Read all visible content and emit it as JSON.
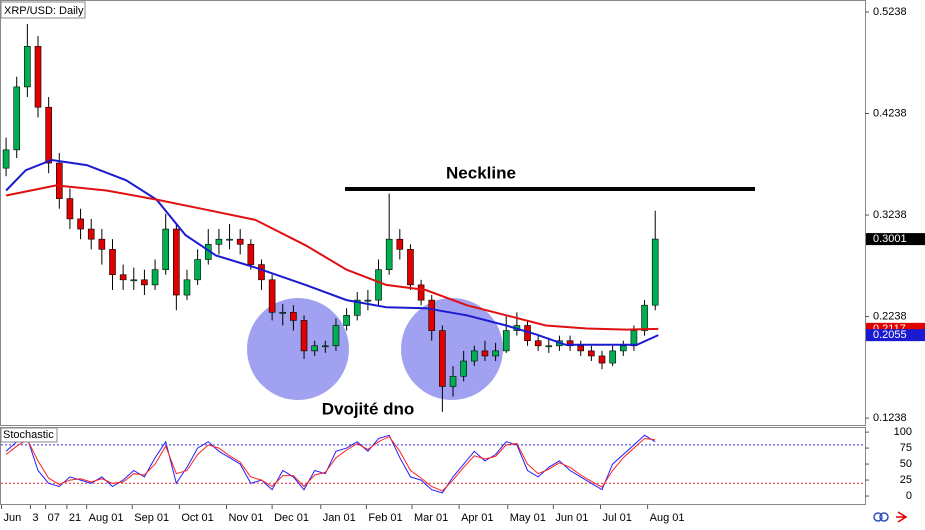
{
  "chart_data": {
    "type": "candlestick",
    "title": "XRP/USD: Daily",
    "up_color": "#00b050",
    "down_color": "#e00000",
    "x": [
      0,
      7,
      14,
      21,
      28,
      35,
      42,
      49,
      56,
      63,
      70,
      77,
      84,
      91,
      98,
      105,
      112,
      119,
      126,
      133,
      140,
      147,
      154,
      161,
      168,
      175,
      182,
      189,
      196,
      203,
      210,
      217,
      224,
      231,
      238,
      245,
      252,
      259,
      266,
      273,
      280,
      287,
      294,
      301,
      308,
      315,
      322,
      329,
      336,
      343,
      350,
      357,
      364,
      371,
      378,
      385,
      392,
      399,
      406,
      413,
      420,
      427
    ],
    "candles": [
      [
        0.37,
        0.4,
        0.362,
        0.388
      ],
      [
        0.388,
        0.46,
        0.38,
        0.45
      ],
      [
        0.45,
        0.512,
        0.44,
        0.49
      ],
      [
        0.49,
        0.5,
        0.42,
        0.43
      ],
      [
        0.43,
        0.44,
        0.365,
        0.375
      ],
      [
        0.375,
        0.385,
        0.33,
        0.34
      ],
      [
        0.34,
        0.35,
        0.31,
        0.32
      ],
      [
        0.32,
        0.33,
        0.3,
        0.31
      ],
      [
        0.31,
        0.32,
        0.29,
        0.3
      ],
      [
        0.3,
        0.31,
        0.275,
        0.29
      ],
      [
        0.29,
        0.3,
        0.25,
        0.265
      ],
      [
        0.265,
        0.275,
        0.25,
        0.26
      ],
      [
        0.26,
        0.272,
        0.25,
        0.26
      ],
      [
        0.26,
        0.27,
        0.245,
        0.255
      ],
      [
        0.255,
        0.28,
        0.25,
        0.27
      ],
      [
        0.27,
        0.325,
        0.265,
        0.31
      ],
      [
        0.31,
        0.315,
        0.23,
        0.245
      ],
      [
        0.245,
        0.27,
        0.24,
        0.26
      ],
      [
        0.26,
        0.29,
        0.255,
        0.28
      ],
      [
        0.28,
        0.31,
        0.275,
        0.295
      ],
      [
        0.295,
        0.31,
        0.285,
        0.3
      ],
      [
        0.3,
        0.315,
        0.29,
        0.3
      ],
      [
        0.3,
        0.31,
        0.285,
        0.295
      ],
      [
        0.295,
        0.3,
        0.27,
        0.275
      ],
      [
        0.275,
        0.28,
        0.25,
        0.26
      ],
      [
        0.26,
        0.265,
        0.22,
        0.228
      ],
      [
        0.228,
        0.236,
        0.215,
        0.228
      ],
      [
        0.228,
        0.235,
        0.21,
        0.22
      ],
      [
        0.22,
        0.225,
        0.182,
        0.19
      ],
      [
        0.19,
        0.2,
        0.185,
        0.195
      ],
      [
        0.195,
        0.2,
        0.188,
        0.195
      ],
      [
        0.195,
        0.222,
        0.19,
        0.215
      ],
      [
        0.215,
        0.232,
        0.21,
        0.225
      ],
      [
        0.225,
        0.248,
        0.22,
        0.24
      ],
      [
        0.24,
        0.25,
        0.23,
        0.24
      ],
      [
        0.24,
        0.28,
        0.235,
        0.27
      ],
      [
        0.27,
        0.345,
        0.265,
        0.3
      ],
      [
        0.3,
        0.31,
        0.28,
        0.29
      ],
      [
        0.29,
        0.295,
        0.25,
        0.255
      ],
      [
        0.255,
        0.26,
        0.235,
        0.24
      ],
      [
        0.24,
        0.245,
        0.2,
        0.21
      ],
      [
        0.21,
        0.215,
        0.13,
        0.155
      ],
      [
        0.155,
        0.175,
        0.145,
        0.165
      ],
      [
        0.165,
        0.19,
        0.16,
        0.18
      ],
      [
        0.18,
        0.195,
        0.175,
        0.19
      ],
      [
        0.19,
        0.2,
        0.18,
        0.185
      ],
      [
        0.185,
        0.198,
        0.18,
        0.19
      ],
      [
        0.19,
        0.225,
        0.188,
        0.21
      ],
      [
        0.21,
        0.228,
        0.205,
        0.215
      ],
      [
        0.215,
        0.22,
        0.195,
        0.2
      ],
      [
        0.2,
        0.205,
        0.19,
        0.195
      ],
      [
        0.195,
        0.203,
        0.188,
        0.195
      ],
      [
        0.195,
        0.205,
        0.19,
        0.2
      ],
      [
        0.2,
        0.205,
        0.19,
        0.195
      ],
      [
        0.195,
        0.2,
        0.185,
        0.19
      ],
      [
        0.19,
        0.195,
        0.18,
        0.185
      ],
      [
        0.185,
        0.19,
        0.172,
        0.178
      ],
      [
        0.178,
        0.195,
        0.175,
        0.19
      ],
      [
        0.19,
        0.2,
        0.185,
        0.195
      ],
      [
        0.195,
        0.215,
        0.19,
        0.21
      ],
      [
        0.21,
        0.24,
        0.205,
        0.235
      ],
      [
        0.235,
        0.328,
        0.23,
        0.3001
      ]
    ],
    "overlays": [
      {
        "color": "#1a1ad0",
        "x": [
          0,
          13,
          30,
          53,
          79,
          99,
          118,
          138,
          164,
          197,
          224,
          250,
          276,
          303,
          329,
          349,
          368,
          395,
          415,
          429
        ],
        "values": [
          0.348,
          0.368,
          0.378,
          0.373,
          0.358,
          0.339,
          0.304,
          0.284,
          0.272,
          0.255,
          0.24,
          0.233,
          0.232,
          0.225,
          0.215,
          0.206,
          0.196,
          0.196,
          0.196,
          0.2055
        ]
      },
      {
        "color": "#e01010",
        "x": [
          0,
          33,
          66,
          99,
          132,
          164,
          197,
          224,
          250,
          276,
          303,
          329,
          355,
          382,
          408,
          429
        ],
        "values": [
          0.343,
          0.353,
          0.348,
          0.339,
          0.329,
          0.319,
          0.294,
          0.27,
          0.255,
          0.25,
          0.235,
          0.225,
          0.215,
          0.212,
          0.211,
          0.2117
        ]
      }
    ],
    "price_markers": [
      {
        "value": 0.2117,
        "color": "#e00000"
      },
      {
        "value": 0.2055,
        "color": "#1a1ad0"
      },
      {
        "value": 0.3001,
        "color": "#000000"
      }
    ],
    "xlim": [
      -4,
      565
    ],
    "xticks": [
      {
        "value": -3,
        "label": "Jun"
      },
      {
        "value": 16,
        "label": "3"
      },
      {
        "value": 26,
        "label": "07"
      },
      {
        "value": 40,
        "label": "21"
      },
      {
        "value": 53,
        "label": "Aug 01"
      },
      {
        "value": 83,
        "label": "Sep 01"
      },
      {
        "value": 114,
        "label": "Oct 01"
      },
      {
        "value": 145,
        "label": "Nov 01"
      },
      {
        "value": 175,
        "label": "Dec 01"
      },
      {
        "value": 207,
        "label": "Jan 01"
      },
      {
        "value": 237,
        "label": "Feb 01"
      },
      {
        "value": 267,
        "label": "Mar 01"
      },
      {
        "value": 298,
        "label": "Apr 01"
      },
      {
        "value": 330,
        "label": "May 01"
      },
      {
        "value": 360,
        "label": "Jun 01"
      },
      {
        "value": 391,
        "label": "Jul 01"
      },
      {
        "value": 422,
        "label": "Aug 01"
      }
    ],
    "ylim": [
      0.117,
      0.5356
    ],
    "yticks": [
      0.5238,
      0.4238,
      0.3238,
      0.2238,
      0.1238
    ],
    "annotations": [
      {
        "text": "Neckline"
      },
      {
        "text": "Dvojité dno"
      }
    ],
    "indicator": {
      "type": "line",
      "title": "Stochastic",
      "ylim": [
        -14,
        108
      ],
      "yticks": [
        100,
        75,
        50,
        25,
        0
      ],
      "levels": [
        {
          "value": 80,
          "color": "#3030d0"
        },
        {
          "value": 20,
          "color": "#e03030"
        }
      ],
      "series": [
        {
          "color": "#2020ff",
          "values": [
            70,
            85,
            90,
            40,
            20,
            15,
            30,
            25,
            20,
            30,
            15,
            25,
            40,
            30,
            60,
            85,
            20,
            45,
            75,
            85,
            70,
            60,
            50,
            20,
            25,
            10,
            40,
            30,
            10,
            40,
            35,
            70,
            75,
            85,
            70,
            90,
            95,
            60,
            30,
            25,
            10,
            5,
            30,
            50,
            70,
            55,
            65,
            85,
            80,
            40,
            30,
            45,
            55,
            40,
            30,
            20,
            10,
            50,
            65,
            80,
            95,
            85
          ]
        },
        {
          "color": "#ff2020",
          "values": [
            65,
            78,
            88,
            55,
            28,
            18,
            25,
            27,
            22,
            27,
            20,
            22,
            35,
            33,
            50,
            78,
            35,
            40,
            65,
            80,
            75,
            63,
            53,
            30,
            25,
            15,
            32,
            32,
            15,
            33,
            37,
            60,
            72,
            82,
            73,
            85,
            93,
            70,
            40,
            28,
            15,
            8,
            25,
            45,
            63,
            58,
            62,
            80,
            82,
            50,
            35,
            42,
            52,
            45,
            33,
            23,
            14,
            40,
            60,
            75,
            90,
            88
          ]
        }
      ]
    }
  }
}
